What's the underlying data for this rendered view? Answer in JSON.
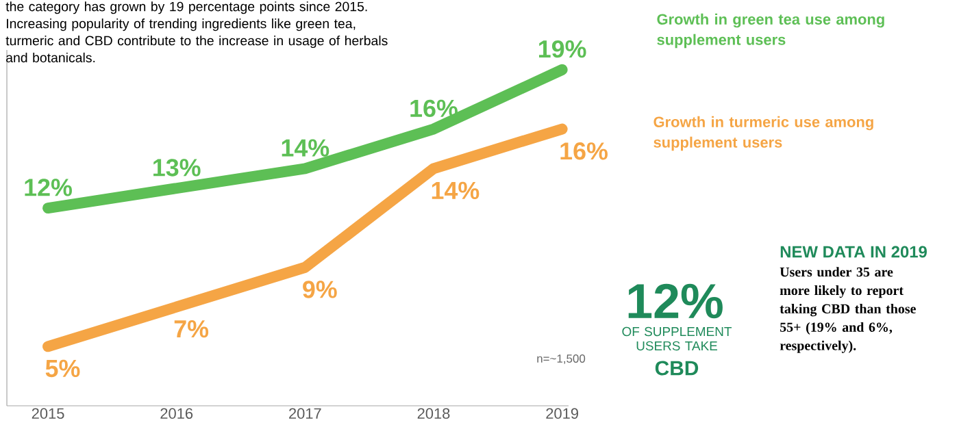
{
  "chart_data": {
    "type": "line",
    "categories": [
      "2015",
      "2016",
      "2017",
      "2018",
      "2019"
    ],
    "series": [
      {
        "name": "Growth in green tea use among supplement users",
        "color": "#5dbf55",
        "values": [
          12,
          13,
          14,
          16,
          19
        ],
        "value_labels": [
          "12%",
          "13%",
          "14%",
          "16%",
          "19%"
        ]
      },
      {
        "name": "Growth in turmeric use among supplement users",
        "color": "#f5a545",
        "values": [
          5,
          7,
          9,
          14,
          16
        ],
        "value_labels": [
          "5%",
          "7%",
          "9%",
          "14%",
          "16%"
        ]
      }
    ],
    "ylim": [
      2,
      20
    ],
    "tick_labels": "x",
    "annotations": [
      "the category has grown by 19 percentage points since 2015. Increasing popularity of trending ingredients like green tea, turmeric and CBD contribute to the increase in usage of herbals and botanicals.",
      "n=~1,500",
      "12%",
      "OF SUPPLEMENT USERS TAKE",
      "CBD",
      "NEW DATA IN 2019",
      "Users under 35 are more likely to report taking CBD than those 55+ (19% and 6%, respectively)."
    ]
  }
}
